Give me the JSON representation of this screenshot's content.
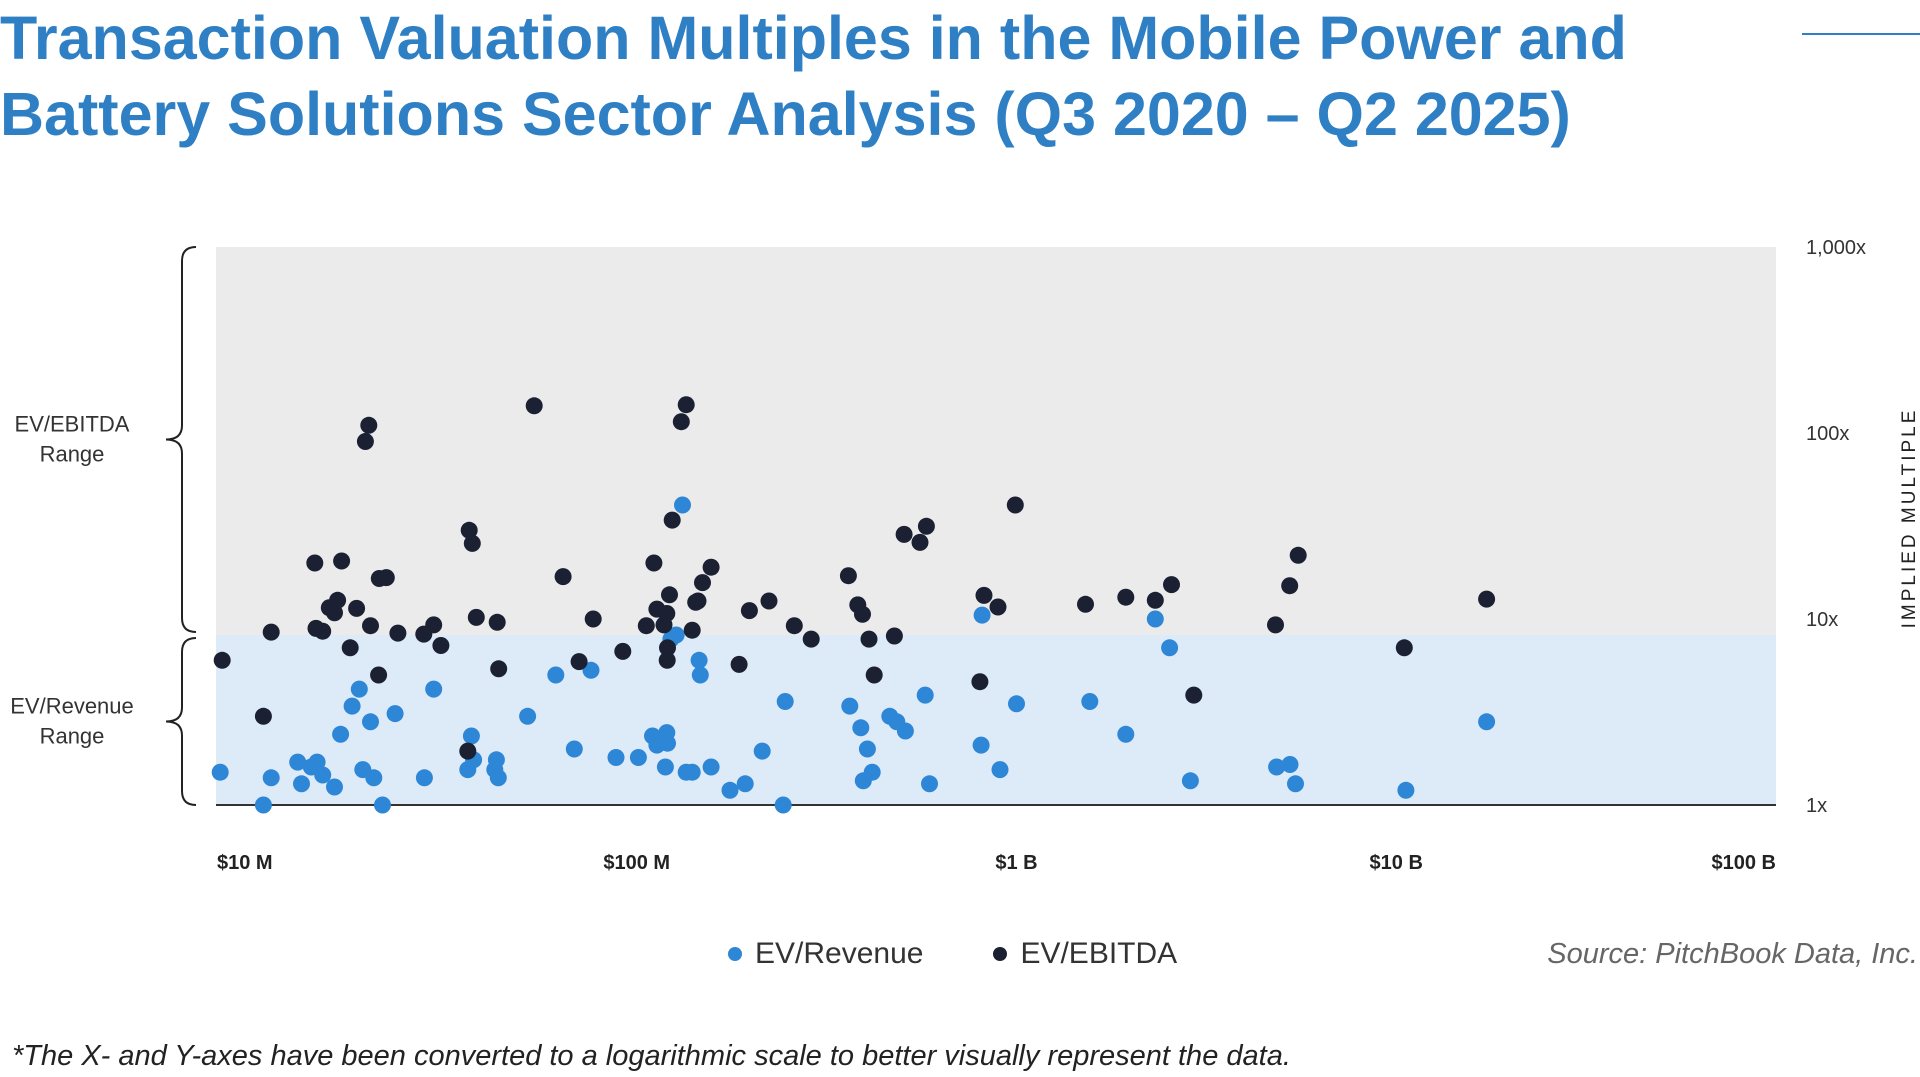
{
  "title": "Transaction Valuation Multiples in the Mobile Power and Battery Solutions Sector Analysis (Q3 2020 – Q2 2025)",
  "legend": {
    "revenue_label": "EV/Revenue",
    "ebitda_label": "EV/EBITDA"
  },
  "source": "Source: PitchBook Data, Inc.",
  "footnote": "*The X- and Y-axes have been converted to a logarithmic scale to better visually represent the data.",
  "colors": {
    "revenue": "#2e86d6",
    "ebitda": "#1b2133",
    "title": "#2e7fc4",
    "ebitda_band": "#ebebeb",
    "revenue_band": "#ddeaf8"
  },
  "chart_data": {
    "type": "scatter",
    "x_scale": "log",
    "y_scale": "log",
    "xlim": [
      7800000,
      100000000000
    ],
    "ylim": [
      1,
      1000
    ],
    "revenue_band": [
      1,
      8.2
    ],
    "ebitda_band": [
      8.2,
      1000
    ],
    "x_ticks": [
      {
        "value": 10000000,
        "label": "$10 M"
      },
      {
        "value": 100000000,
        "label": "$100 M"
      },
      {
        "value": 1000000000,
        "label": "$1 B"
      },
      {
        "value": 10000000000,
        "label": "$10 B"
      },
      {
        "value": 100000000000,
        "label": "$100 B"
      }
    ],
    "y_ticks": [
      {
        "value": 1,
        "label": "1x"
      },
      {
        "value": 10,
        "label": "10x"
      },
      {
        "value": 100,
        "label": "100x"
      },
      {
        "value": 1000,
        "label": "1,000x"
      }
    ],
    "y_axis_label": "IMPLIED MULTIPLE",
    "range_labels": [
      {
        "lines": [
          "EV/EBITDA",
          "Range"
        ],
        "from": 8.2,
        "to": 1000
      },
      {
        "lines": [
          "EV/Revenue",
          "Range"
        ],
        "from": 1,
        "to": 8.2
      }
    ],
    "series": [
      {
        "name": "EV/Revenue",
        "points": [
          [
            8000000,
            1.5
          ],
          [
            10400000,
            1.0
          ],
          [
            10900000,
            1.4
          ],
          [
            12800000,
            1.7
          ],
          [
            13100000,
            1.3
          ],
          [
            13900000,
            1.6
          ],
          [
            14400000,
            1.7
          ],
          [
            14900000,
            1.45
          ],
          [
            16000000,
            1.25
          ],
          [
            16600000,
            2.4
          ],
          [
            17800000,
            3.4
          ],
          [
            18600000,
            4.2
          ],
          [
            19000000,
            1.55
          ],
          [
            19900000,
            2.8
          ],
          [
            20300000,
            1.4
          ],
          [
            21400000,
            1.0
          ],
          [
            23100000,
            3.1
          ],
          [
            27600000,
            1.4
          ],
          [
            29200000,
            4.2
          ],
          [
            35900000,
            1.55
          ],
          [
            36700000,
            2.35
          ],
          [
            37200000,
            1.75
          ],
          [
            42300000,
            1.55
          ],
          [
            42700000,
            1.75
          ],
          [
            43200000,
            1.4
          ],
          [
            51600000,
            3.0
          ],
          [
            61200000,
            5.0
          ],
          [
            68500000,
            2.0
          ],
          [
            75800000,
            5.3
          ],
          [
            88200000,
            1.8
          ],
          [
            101000000,
            1.8
          ],
          [
            110000000,
            2.35
          ],
          [
            113000000,
            2.1
          ],
          [
            114000000,
            2.2
          ],
          [
            116000000,
            2.25
          ],
          [
            119000000,
            1.6
          ],
          [
            120000000,
            2.45
          ],
          [
            120500000,
            2.15
          ],
          [
            123000000,
            7.8
          ],
          [
            127000000,
            8.2
          ],
          [
            132000000,
            41.0
          ],
          [
            135000000,
            1.5
          ],
          [
            140000000,
            1.5
          ],
          [
            146000000,
            6.0
          ],
          [
            147000000,
            5.0
          ],
          [
            157000000,
            1.6
          ],
          [
            176000000,
            1.2
          ],
          [
            193000000,
            1.3
          ],
          [
            214000000,
            1.95
          ],
          [
            243000000,
            1.0
          ],
          [
            246000000,
            3.6
          ],
          [
            364000000,
            3.4
          ],
          [
            389000000,
            2.6
          ],
          [
            395000000,
            1.35
          ],
          [
            405000000,
            2.0
          ],
          [
            417000000,
            1.5
          ],
          [
            464000000,
            3.0
          ],
          [
            484000000,
            2.8
          ],
          [
            510000000,
            2.5
          ],
          [
            575000000,
            3.9
          ],
          [
            590000000,
            1.3
          ],
          [
            807000000,
            2.1
          ],
          [
            812000000,
            10.5
          ],
          [
            905000000,
            1.55
          ],
          [
            1000000000,
            3.5
          ],
          [
            1560000000,
            3.6
          ],
          [
            1940000000,
            2.4
          ],
          [
            2320000000,
            10.0
          ],
          [
            2530000000,
            7.0
          ],
          [
            2870000000,
            1.35
          ],
          [
            4840000000,
            1.6
          ],
          [
            5250000000,
            1.65
          ],
          [
            5430000000,
            1.3
          ],
          [
            10600000000,
            1.2
          ],
          [
            17300000000,
            2.8
          ]
        ]
      },
      {
        "name": "EV/EBITDA",
        "points": [
          [
            8100000,
            6.0
          ],
          [
            10400000,
            3.0
          ],
          [
            10900000,
            8.5
          ],
          [
            14200000,
            20.0
          ],
          [
            14300000,
            8.9
          ],
          [
            14900000,
            8.6
          ],
          [
            15500000,
            11.5
          ],
          [
            16000000,
            10.8
          ],
          [
            16300000,
            12.6
          ],
          [
            16700000,
            20.5
          ],
          [
            17600000,
            7.0
          ],
          [
            18300000,
            11.4
          ],
          [
            19300000,
            90.0
          ],
          [
            19700000,
            110.0
          ],
          [
            19900000,
            9.2
          ],
          [
            20900000,
            5.0
          ],
          [
            21000000,
            16.5
          ],
          [
            21900000,
            16.7
          ],
          [
            23500000,
            8.4
          ],
          [
            27500000,
            8.3
          ],
          [
            29200000,
            9.3
          ],
          [
            30500000,
            7.2
          ],
          [
            35900000,
            1.95
          ],
          [
            36200000,
            30.0
          ],
          [
            36900000,
            25.5
          ],
          [
            37800000,
            10.2
          ],
          [
            42900000,
            9.6
          ],
          [
            43300000,
            5.4
          ],
          [
            53700000,
            140.0
          ],
          [
            64000000,
            16.9
          ],
          [
            70500000,
            5.9
          ],
          [
            76800000,
            10.0
          ],
          [
            91900000,
            6.7
          ],
          [
            106000000,
            9.2
          ],
          [
            111000000,
            20.0
          ],
          [
            113000000,
            11.3
          ],
          [
            118000000,
            9.3
          ],
          [
            120000000,
            10.7
          ],
          [
            120300000,
            6.0
          ],
          [
            120500000,
            7.0
          ],
          [
            122000000,
            13.5
          ],
          [
            124000000,
            34.0
          ],
          [
            131000000,
            115.0
          ],
          [
            135000000,
            142.0
          ],
          [
            140000000,
            8.7
          ],
          [
            143000000,
            12.3
          ],
          [
            145000000,
            12.5
          ],
          [
            149000000,
            15.7
          ],
          [
            157000000,
            19.0
          ],
          [
            186000000,
            5.7
          ],
          [
            198000000,
            11.1
          ],
          [
            223000000,
            12.5
          ],
          [
            260000000,
            9.2
          ],
          [
            288000000,
            7.8
          ],
          [
            361000000,
            17.1
          ],
          [
            382000000,
            11.9
          ],
          [
            393000000,
            10.6
          ],
          [
            409000000,
            7.8
          ],
          [
            422000000,
            5.0
          ],
          [
            477000000,
            8.1
          ],
          [
            506000000,
            28.5
          ],
          [
            557000000,
            25.8
          ],
          [
            579000000,
            31.5
          ],
          [
            801000000,
            4.6
          ],
          [
            821000000,
            13.4
          ],
          [
            894000000,
            11.6
          ],
          [
            993000000,
            41.0
          ],
          [
            1520000000,
            12.0
          ],
          [
            1940000000,
            13.1
          ],
          [
            2320000000,
            12.6
          ],
          [
            2560000000,
            15.3
          ],
          [
            2930000000,
            3.9
          ],
          [
            4810000000,
            9.3
          ],
          [
            5240000000,
            15.1
          ],
          [
            5520000000,
            22.0
          ],
          [
            10500000000,
            7.0
          ],
          [
            17300000000,
            12.8
          ]
        ]
      }
    ]
  }
}
